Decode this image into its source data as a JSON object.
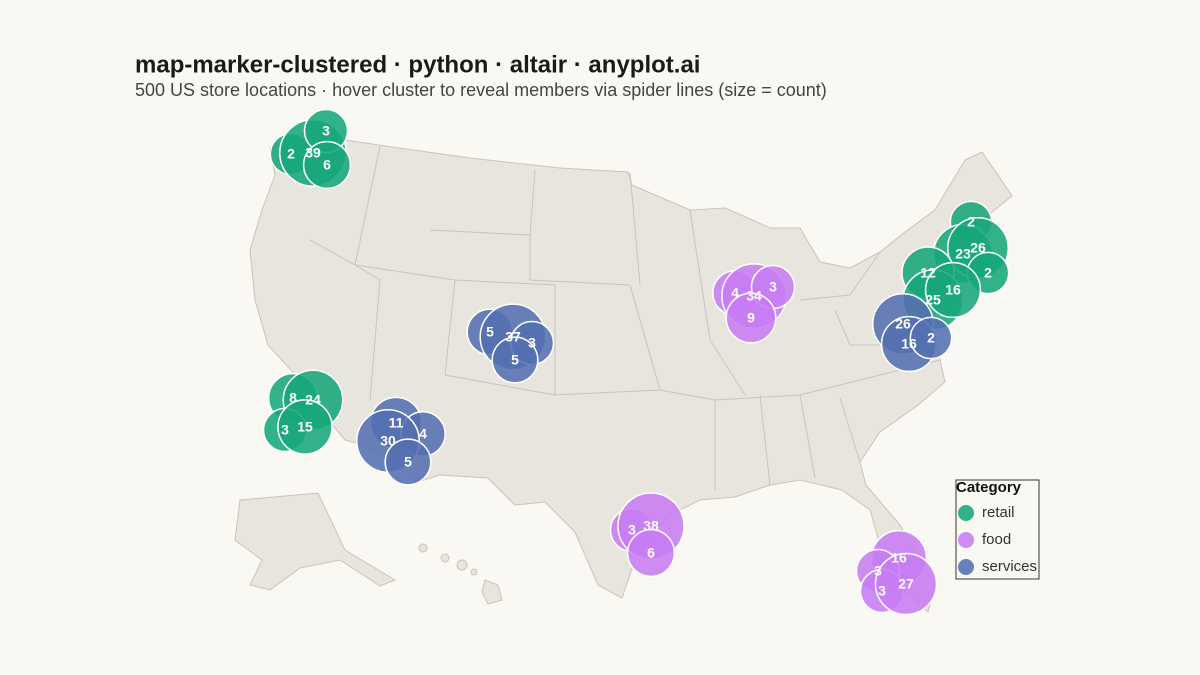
{
  "title": "map-marker-clustered · python · altair · anyplot.ai",
  "subtitle": "500 US store locations · hover cluster to reveal members via spider lines (size = count)",
  "legend": {
    "title": "Category",
    "items": [
      {
        "name": "retail",
        "color": "#17a67a"
      },
      {
        "name": "food",
        "color": "#c77cf2"
      },
      {
        "name": "services",
        "color": "#5470b0"
      }
    ]
  },
  "clusters": [
    {
      "category": "retail",
      "counts": [
        2,
        39,
        3,
        6
      ]
    },
    {
      "category": "services",
      "counts": [
        5,
        37,
        3,
        5
      ]
    },
    {
      "category": "retail",
      "counts": [
        8,
        24,
        3,
        15
      ]
    },
    {
      "category": "services",
      "counts": [
        11,
        4,
        30,
        5
      ]
    },
    {
      "category": "food",
      "counts": [
        4,
        34,
        3,
        9
      ]
    },
    {
      "category": "retail",
      "counts": [
        2,
        23,
        26,
        2,
        12,
        25,
        16
      ]
    },
    {
      "category": "services",
      "counts": [
        26,
        16,
        2
      ]
    },
    {
      "category": "food",
      "counts": [
        3,
        38,
        6
      ]
    },
    {
      "category": "food",
      "counts": [
        16,
        3,
        3,
        27
      ]
    }
  ]
}
